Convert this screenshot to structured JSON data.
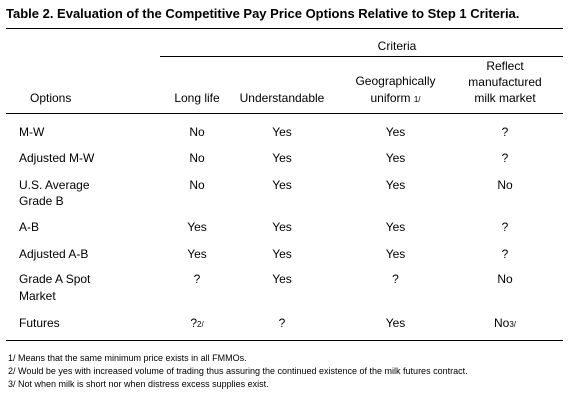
{
  "table": {
    "title": "Table 2.  Evaluation of the Competitive Pay Price Options Relative to Step 1 Criteria.",
    "criteria_label": "Criteria",
    "headers": {
      "options": "Options",
      "long_life": "Long life",
      "understandable": "Understandable",
      "geo_line1": "Geographically",
      "geo_line2": "uniform",
      "geo_note": "1/",
      "reflect_line1": "Reflect",
      "reflect_line2": "manufactured",
      "reflect_line3": "milk market"
    },
    "rows": [
      {
        "line1": "M-W",
        "line2": "",
        "long_life": "No",
        "long_life_note": "",
        "understandable": "Yes",
        "geo": "Yes",
        "reflect": "?",
        "reflect_note": ""
      },
      {
        "line1": "Adjusted M-W",
        "line2": "",
        "long_life": "No",
        "long_life_note": "",
        "understandable": "Yes",
        "geo": "Yes",
        "reflect": "?",
        "reflect_note": ""
      },
      {
        "line1": "U.S. Average",
        "line2": "Grade B",
        "long_life": "No",
        "long_life_note": "",
        "understandable": "Yes",
        "geo": "Yes",
        "reflect": "No",
        "reflect_note": ""
      },
      {
        "line1": "A-B",
        "line2": "",
        "long_life": "Yes",
        "long_life_note": "",
        "understandable": "Yes",
        "geo": "Yes",
        "reflect": "?",
        "reflect_note": ""
      },
      {
        "line1": "Adjusted A-B",
        "line2": "",
        "long_life": "Yes",
        "long_life_note": "",
        "understandable": "Yes",
        "geo": "Yes",
        "reflect": "?",
        "reflect_note": ""
      },
      {
        "line1": "Grade A Spot",
        "line2": "Market",
        "long_life": "?",
        "long_life_note": "",
        "understandable": "Yes",
        "geo": "?",
        "reflect": "No",
        "reflect_note": ""
      },
      {
        "line1": "Futures",
        "line2": "",
        "long_life": "?",
        "long_life_note": "2/",
        "understandable": "?",
        "geo": "Yes",
        "reflect": "No",
        "reflect_note": "3/"
      }
    ],
    "footnotes": [
      "1/ Means that the same minimum price exists in all FMMOs.",
      "2/ Would be yes with increased volume of trading thus assuring the continued existence of the milk futures contract.",
      "3/ Not when milk is short nor when distress excess supplies exist."
    ]
  }
}
